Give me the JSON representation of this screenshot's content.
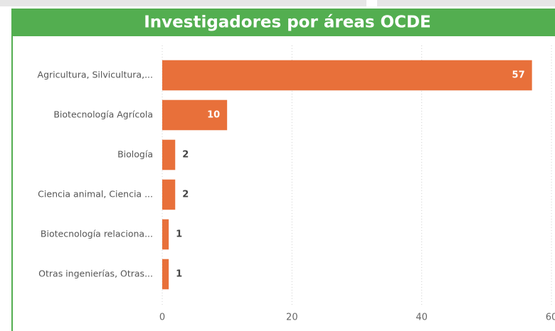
{
  "chart_data": {
    "type": "bar",
    "title": "Investigadores por áreas OCDE",
    "categories": [
      "Agricultura, Silvicultura,...",
      "Biotecnología Agrícola",
      "Biología",
      "Ciencia animal, Ciencia ...",
      "Biotecnología relaciona...",
      "Otras ingenierías, Otras..."
    ],
    "values": [
      57,
      10,
      2,
      2,
      1,
      1
    ],
    "color": "#e8703a",
    "orientation": "horizontal",
    "xlim": [
      0,
      60
    ],
    "xticks": [
      0,
      20,
      40,
      60
    ],
    "grid": true
  }
}
